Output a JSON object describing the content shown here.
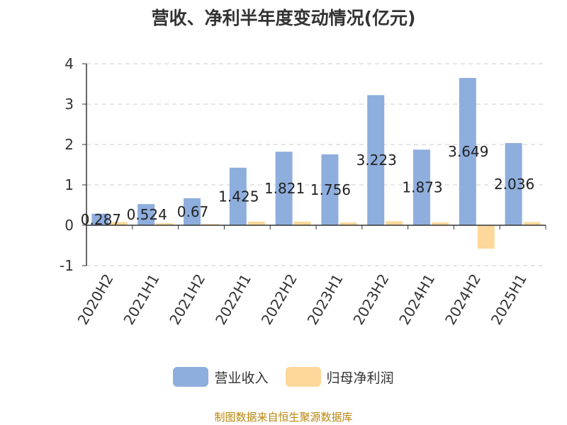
{
  "chart_data": {
    "type": "bar",
    "title": "营收、净利半年度变动情况(亿元)",
    "categories": [
      "2020H2",
      "2021H1",
      "2021H2",
      "2022H1",
      "2022H2",
      "2023H1",
      "2023H2",
      "2024H1",
      "2024H2",
      "2025H1"
    ],
    "series": [
      {
        "name": "营业收入",
        "color": "#8eaedd",
        "values": [
          0.287,
          0.524,
          0.67,
          1.425,
          1.821,
          1.756,
          3.223,
          1.873,
          3.649,
          2.036
        ],
        "labels": [
          "0.287",
          "0.524",
          "0.67",
          "1.425",
          "1.821",
          "1.756",
          "3.223",
          "1.873",
          "3.649",
          "2.036"
        ]
      },
      {
        "name": "归母净利润",
        "color": "#fdd89a",
        "values": [
          0.08,
          0.05,
          0.03,
          0.09,
          0.09,
          0.07,
          0.1,
          0.07,
          -0.58,
          0.08
        ]
      }
    ],
    "ylim": [
      -1,
      4
    ],
    "yticks": [
      "-1",
      "0",
      "1",
      "2",
      "3",
      "4"
    ],
    "grid": true,
    "legend_position": "bottom"
  },
  "footer": {
    "source": "制图数据来自恒生聚源数据库"
  }
}
